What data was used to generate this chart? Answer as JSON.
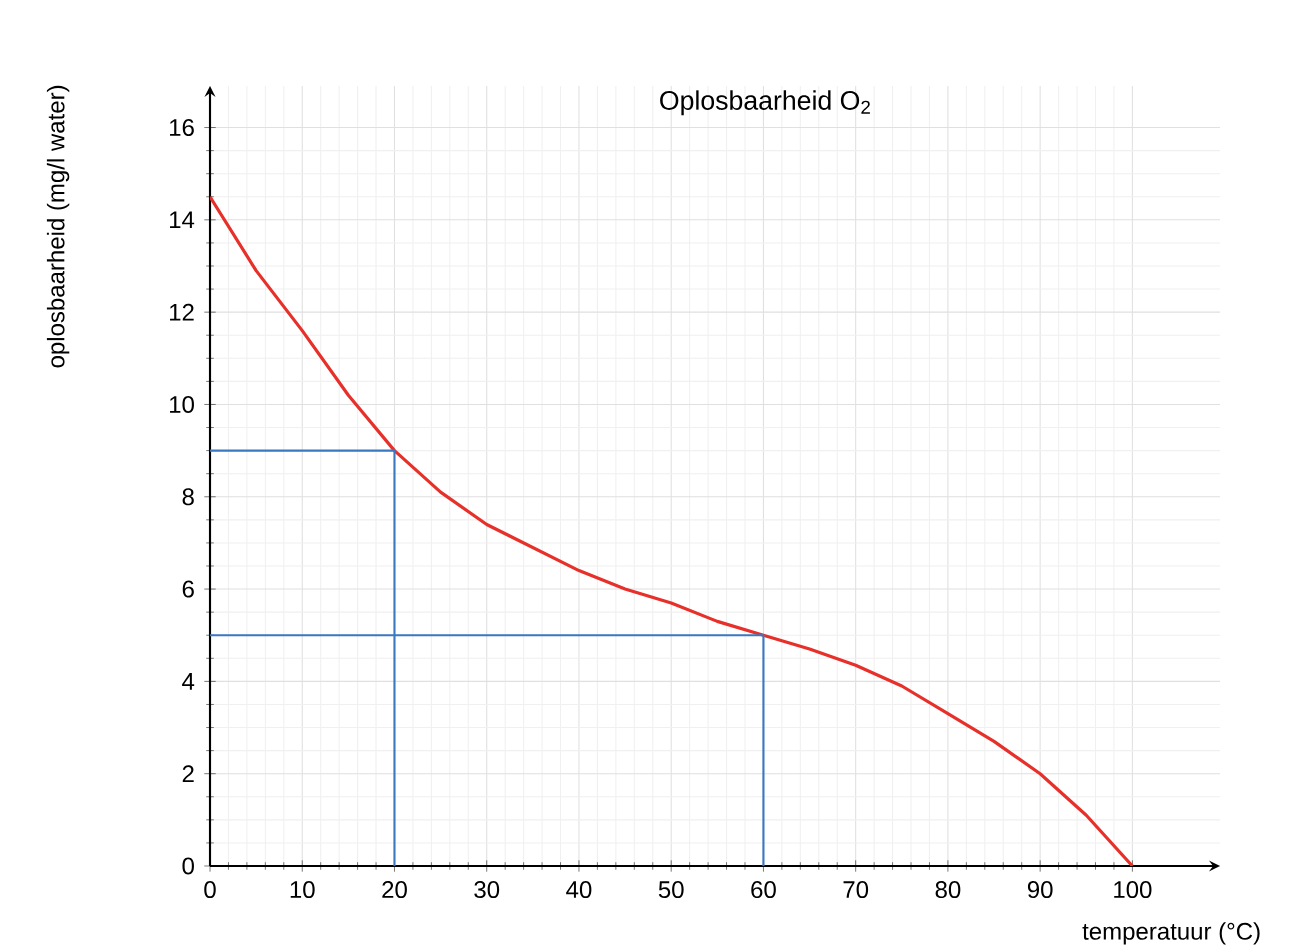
{
  "chart_data": {
    "type": "line",
    "title": "Oplosbaarheid O$_{2}$",
    "xlabel": "temperatuur (°C)",
    "ylabel": "oplosbaarheid (mg/l water)",
    "xlim": [
      0,
      109.5
    ],
    "ylim": [
      0,
      16.9
    ],
    "xticks": [
      0,
      10,
      20,
      30,
      40,
      50,
      60,
      70,
      80,
      90,
      100
    ],
    "yticks": [
      0,
      2,
      4,
      6,
      8,
      10,
      12,
      14,
      16
    ],
    "grid": true,
    "line_style": "solid",
    "series": [
      {
        "color": "#e8302a",
        "x": [
          0,
          5,
          10,
          15,
          20,
          25,
          30,
          35,
          40,
          45,
          50,
          55,
          60,
          65,
          70,
          75,
          80,
          85,
          90,
          95,
          100
        ],
        "values": [
          14.5,
          12.9,
          11.6,
          10.2,
          9.0,
          8.1,
          7.4,
          6.9,
          6.4,
          6.0,
          5.7,
          5.3,
          5.0,
          4.7,
          4.35,
          3.9,
          3.3,
          2.7,
          2.0,
          1.1,
          0
        ]
      },
      {
        "color": "#3a78c2",
        "x": [
          0,
          20,
          20
        ],
        "values": [
          9,
          9,
          0
        ]
      },
      {
        "color": "#3a78c2",
        "x": [
          0,
          60,
          60
        ],
        "values": [
          5,
          5,
          0
        ]
      }
    ]
  }
}
